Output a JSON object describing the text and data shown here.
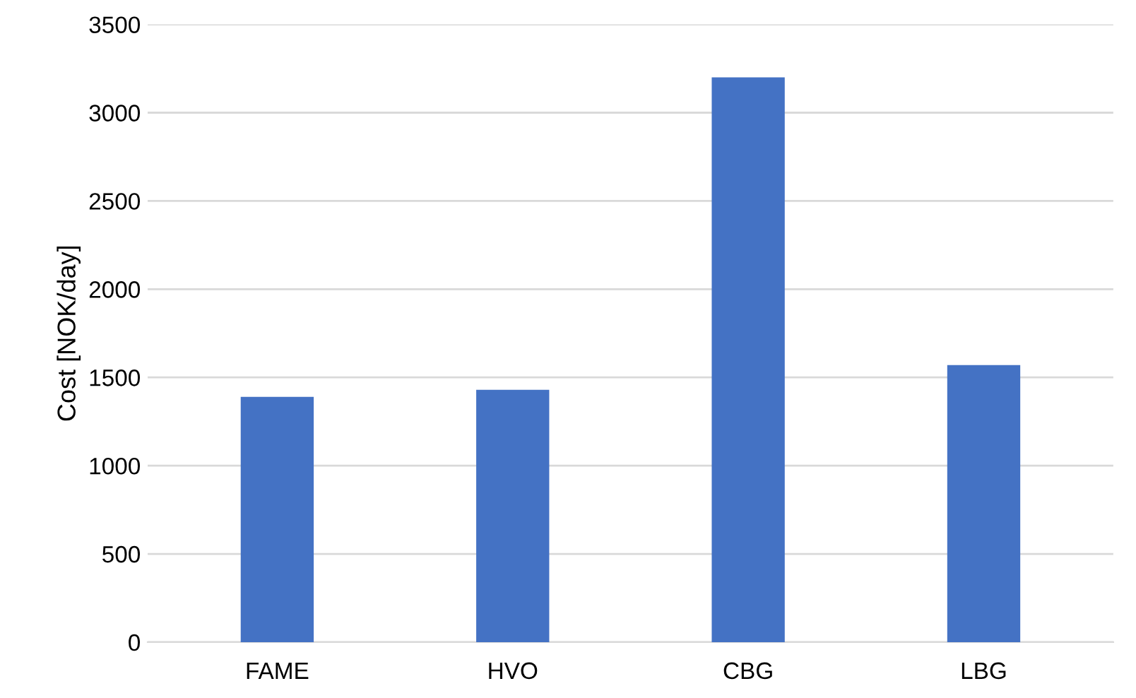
{
  "chart_data": {
    "type": "bar",
    "ylabel": "Cost [NOK/day]",
    "categories": [
      "FAME",
      "HVO",
      "CBG",
      "LBG"
    ],
    "values": [
      1390,
      1430,
      3200,
      1570
    ],
    "color": "#4472c4",
    "ylim": [
      0,
      3500
    ],
    "yticks": [
      0,
      500,
      1000,
      1500,
      2000,
      2500,
      3000,
      3500
    ],
    "grid": "y"
  }
}
